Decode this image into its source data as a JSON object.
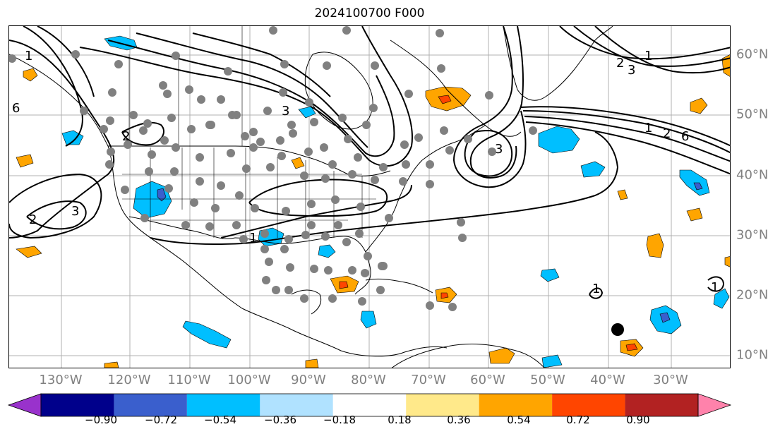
{
  "title": "2024100700 F000",
  "map": {
    "lon_labels": [
      "130°W",
      "120°W",
      "110°W",
      "100°W",
      "90°W",
      "80°W",
      "70°W",
      "60°W",
      "50°W",
      "40°W",
      "30°W"
    ],
    "lat_labels": [
      "60°N",
      "50°N",
      "40°N",
      "30°N",
      "20°N",
      "10°N"
    ],
    "contour_labels": [
      "1",
      "2",
      "3",
      "6",
      "1",
      "2",
      "3",
      "1",
      "2",
      "3",
      "6",
      "1",
      "2",
      "3",
      "1",
      "1"
    ],
    "gridlines": true,
    "station_marker_color": "#808080",
    "storm_marker_color": "#000000"
  },
  "colorbar": {
    "tick_labels": [
      "−0.90",
      "−0.72",
      "−0.54",
      "−0.36",
      "−0.18",
      "0.18",
      "0.36",
      "0.54",
      "0.72",
      "0.90"
    ],
    "colors": [
      "#9932cc",
      "#00008b",
      "#3a5fcd",
      "#00bfff",
      "#b0e2ff",
      "#ffffff",
      "#ffe98a",
      "#ffa500",
      "#ff4500",
      "#b22222",
      "#ff82ab"
    ],
    "extend": "both"
  }
}
